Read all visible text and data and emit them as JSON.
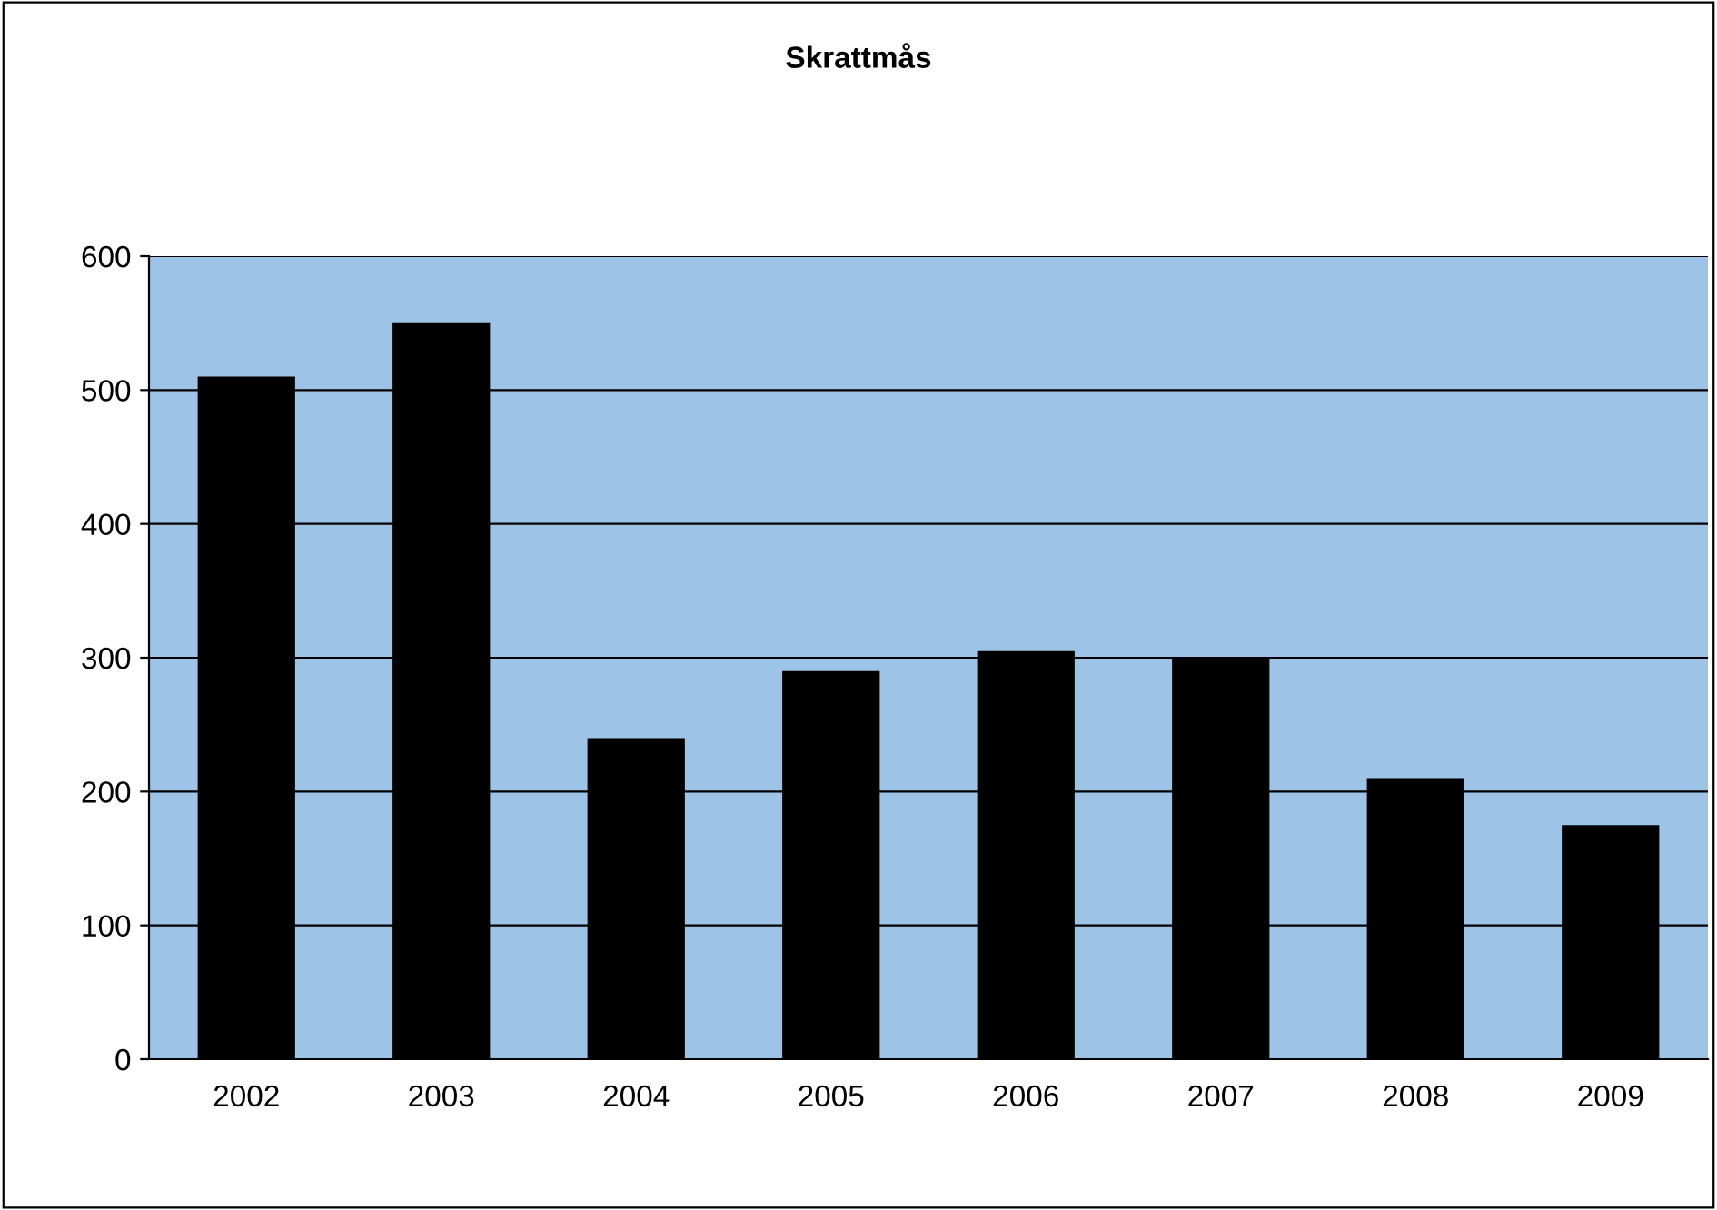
{
  "chart_data": {
    "type": "bar",
    "title": "Skrattmås",
    "categories": [
      "2002",
      "2003",
      "2004",
      "2005",
      "2006",
      "2007",
      "2008",
      "2009"
    ],
    "values": [
      510,
      550,
      240,
      290,
      305,
      300,
      210,
      175
    ],
    "color": "#000000",
    "ylim": [
      0,
      600
    ],
    "yticks": [
      0,
      100,
      200,
      300,
      400,
      500,
      600
    ],
    "grid": "y",
    "legend": false
  }
}
